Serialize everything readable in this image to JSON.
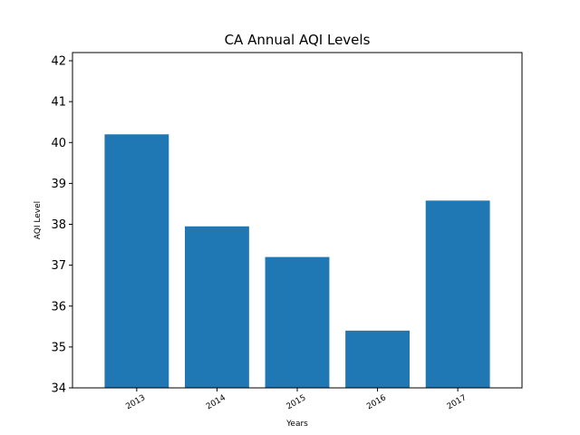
{
  "chart_data": {
    "type": "bar",
    "title": "CA Annual AQI Levels",
    "xlabel": "Years",
    "ylabel": "AQI Level",
    "categories": [
      "2013",
      "2014",
      "2015",
      "2016",
      "2017"
    ],
    "values": [
      40.2,
      37.95,
      37.2,
      35.4,
      38.58
    ],
    "ylim": [
      34,
      42.2
    ],
    "yticks": [
      34,
      35,
      36,
      37,
      38,
      39,
      40,
      41,
      42
    ],
    "bar_color": "#1f77b4",
    "grid": false,
    "legend": "none"
  }
}
